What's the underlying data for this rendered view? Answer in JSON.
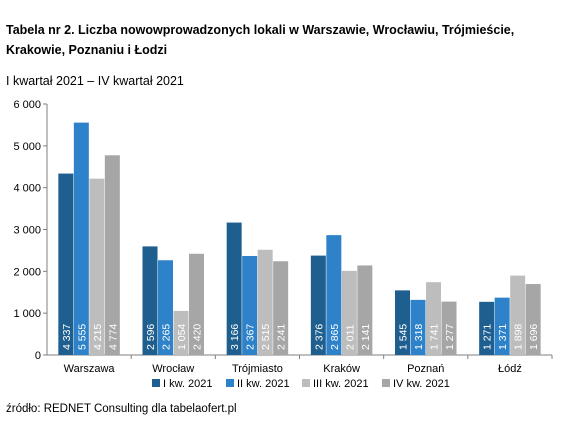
{
  "title": "Tabela nr 2. Liczba nowowprowadzonych lokali w Warszawie, Wrocławiu, Trójmieście, Krakowie, Poznaniu i Łodzi",
  "subtitle": "I kwartał 2021 – IV kwartał 2021",
  "source": "źródło: REDNET Consulting dla tabelaofert.pl",
  "colors": {
    "series": [
      "#1f5f8f",
      "#2e82c9",
      "#bdbdbd",
      "#a6a6a6"
    ],
    "axis": "#7f7f7f",
    "grid": "#d9d9d9",
    "data_label": "#ffffff"
  },
  "chart_data": {
    "type": "bar",
    "categories": [
      "Warszawa",
      "Wrocław",
      "Trójmiasto",
      "Kraków",
      "Poznań",
      "Łódź"
    ],
    "series": [
      {
        "name": "I kw. 2021",
        "values": [
          4337,
          2596,
          3166,
          2376,
          1545,
          1271
        ]
      },
      {
        "name": "II kw. 2021",
        "values": [
          5555,
          2265,
          2367,
          2865,
          1318,
          1371
        ]
      },
      {
        "name": "III kw. 2021",
        "values": [
          4215,
          1054,
          2515,
          2011,
          1741,
          1898
        ]
      },
      {
        "name": "IV kw. 2021",
        "values": [
          4774,
          2420,
          2241,
          2141,
          1277,
          1696
        ]
      }
    ],
    "data_labels": [
      [
        "4 337",
        "2 596",
        "3 166",
        "2 376",
        "1 545",
        "1 271"
      ],
      [
        "5 555",
        "2 265",
        "2 367",
        "2 865",
        "1 318",
        "1 371"
      ],
      [
        "4 215",
        "1 054",
        "2 515",
        "2 011",
        "1 741",
        "1 898"
      ],
      [
        "4 774",
        "2 420",
        "2 241",
        "2 141",
        "1 277",
        "1 696"
      ]
    ],
    "ylim": [
      0,
      6000
    ],
    "yticks": [
      0,
      1000,
      2000,
      3000,
      4000,
      5000,
      6000
    ],
    "ytick_labels": [
      "0",
      "1 000",
      "2 000",
      "3 000",
      "4 000",
      "5 000",
      "6 000"
    ],
    "grid": false,
    "legend_position": "bottom"
  }
}
